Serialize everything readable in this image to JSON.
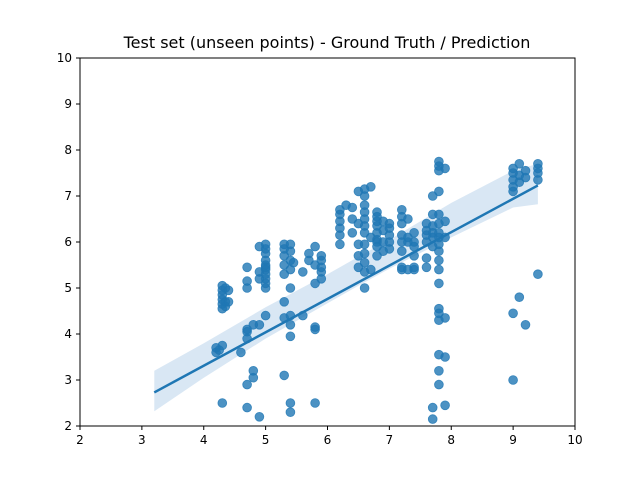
{
  "chart_data": {
    "type": "scatter",
    "title": "Test set (unseen points) - Ground Truth / Prediction",
    "xlabel": "",
    "ylabel": "",
    "xlim": [
      2,
      10
    ],
    "ylim": [
      2,
      10
    ],
    "x_ticks": [
      "2",
      "3",
      "4",
      "5",
      "6",
      "7",
      "8",
      "9",
      "10"
    ],
    "y_ticks": [
      "2",
      "3",
      "4",
      "5",
      "6",
      "7",
      "8",
      "9",
      "10"
    ],
    "grid": false,
    "legend": "none",
    "point_color": "#1f77b4",
    "line_color": "#1f77b4",
    "band_color": "#bfd7ec",
    "points": [
      [
        4.2,
        3.6
      ],
      [
        4.2,
        3.7
      ],
      [
        4.25,
        3.65
      ],
      [
        4.3,
        3.75
      ],
      [
        4.3,
        4.55
      ],
      [
        4.3,
        4.65
      ],
      [
        4.3,
        4.75
      ],
      [
        4.3,
        4.85
      ],
      [
        4.3,
        4.95
      ],
      [
        4.3,
        5.05
      ],
      [
        4.35,
        4.6
      ],
      [
        4.35,
        4.7
      ],
      [
        4.35,
        5.0
      ],
      [
        4.4,
        4.7
      ],
      [
        4.4,
        4.95
      ],
      [
        4.3,
        2.5
      ],
      [
        4.6,
        3.6
      ],
      [
        4.7,
        5.0
      ],
      [
        4.7,
        5.15
      ],
      [
        4.7,
        5.45
      ],
      [
        4.7,
        3.9
      ],
      [
        4.7,
        4.05
      ],
      [
        4.7,
        4.1
      ],
      [
        4.7,
        2.9
      ],
      [
        4.7,
        2.4
      ],
      [
        4.8,
        3.05
      ],
      [
        4.8,
        3.2
      ],
      [
        4.8,
        4.2
      ],
      [
        4.9,
        4.2
      ],
      [
        4.9,
        5.2
      ],
      [
        4.9,
        5.35
      ],
      [
        4.9,
        5.9
      ],
      [
        4.9,
        2.2
      ],
      [
        5.0,
        5.0
      ],
      [
        5.0,
        5.2
      ],
      [
        5.0,
        5.3
      ],
      [
        5.0,
        5.4
      ],
      [
        5.0,
        5.5
      ],
      [
        5.0,
        5.6
      ],
      [
        5.0,
        5.75
      ],
      [
        5.0,
        5.85
      ],
      [
        5.0,
        5.95
      ],
      [
        5.0,
        5.45
      ],
      [
        5.0,
        5.1
      ],
      [
        5.0,
        4.4
      ],
      [
        5.3,
        3.1
      ],
      [
        5.3,
        4.35
      ],
      [
        5.3,
        4.7
      ],
      [
        5.3,
        5.3
      ],
      [
        5.3,
        5.5
      ],
      [
        5.3,
        5.7
      ],
      [
        5.3,
        5.85
      ],
      [
        5.3,
        5.95
      ],
      [
        5.4,
        5.4
      ],
      [
        5.4,
        5.6
      ],
      [
        5.4,
        5.8
      ],
      [
        5.4,
        5.95
      ],
      [
        5.4,
        5.0
      ],
      [
        5.4,
        4.4
      ],
      [
        5.4,
        4.2
      ],
      [
        5.4,
        3.95
      ],
      [
        5.4,
        2.5
      ],
      [
        5.4,
        2.3
      ],
      [
        5.45,
        5.55
      ],
      [
        5.6,
        4.4
      ],
      [
        5.6,
        5.35
      ],
      [
        5.7,
        5.6
      ],
      [
        5.7,
        5.75
      ],
      [
        5.8,
        5.9
      ],
      [
        5.8,
        5.5
      ],
      [
        5.8,
        5.1
      ],
      [
        5.8,
        4.1
      ],
      [
        5.8,
        4.15
      ],
      [
        5.8,
        2.5
      ],
      [
        5.9,
        5.2
      ],
      [
        5.9,
        5.35
      ],
      [
        5.9,
        5.45
      ],
      [
        5.9,
        5.6
      ],
      [
        5.9,
        5.7
      ],
      [
        6.2,
        5.95
      ],
      [
        6.2,
        6.15
      ],
      [
        6.2,
        6.3
      ],
      [
        6.2,
        6.45
      ],
      [
        6.2,
        6.6
      ],
      [
        6.2,
        6.7
      ],
      [
        6.3,
        6.8
      ],
      [
        6.4,
        6.2
      ],
      [
        6.4,
        6.5
      ],
      [
        6.4,
        6.75
      ],
      [
        6.5,
        7.1
      ],
      [
        6.5,
        6.4
      ],
      [
        6.5,
        5.95
      ],
      [
        6.5,
        5.7
      ],
      [
        6.5,
        5.45
      ],
      [
        6.6,
        5.0
      ],
      [
        6.6,
        5.35
      ],
      [
        6.6,
        5.55
      ],
      [
        6.6,
        5.75
      ],
      [
        6.6,
        5.95
      ],
      [
        6.6,
        6.2
      ],
      [
        6.6,
        6.35
      ],
      [
        6.6,
        6.5
      ],
      [
        6.6,
        6.65
      ],
      [
        6.6,
        6.8
      ],
      [
        6.6,
        7.0
      ],
      [
        6.6,
        7.15
      ],
      [
        6.7,
        7.2
      ],
      [
        6.7,
        6.1
      ],
      [
        6.7,
        5.4
      ],
      [
        6.8,
        5.7
      ],
      [
        6.8,
        5.9
      ],
      [
        6.8,
        6.05
      ],
      [
        6.8,
        6.2
      ],
      [
        6.8,
        6.35
      ],
      [
        6.8,
        6.45
      ],
      [
        6.8,
        6.55
      ],
      [
        6.8,
        6.65
      ],
      [
        6.8,
        6.0
      ],
      [
        6.9,
        6.25
      ],
      [
        6.9,
        6.45
      ],
      [
        6.9,
        6.0
      ],
      [
        6.9,
        5.8
      ],
      [
        7.0,
        5.85
      ],
      [
        7.0,
        6.0
      ],
      [
        7.0,
        6.15
      ],
      [
        7.0,
        6.3
      ],
      [
        7.0,
        6.4
      ],
      [
        7.2,
        5.4
      ],
      [
        7.2,
        5.45
      ],
      [
        7.2,
        5.8
      ],
      [
        7.2,
        6.0
      ],
      [
        7.2,
        6.15
      ],
      [
        7.2,
        6.4
      ],
      [
        7.2,
        6.55
      ],
      [
        7.2,
        6.7
      ],
      [
        7.3,
        6.0
      ],
      [
        7.3,
        6.1
      ],
      [
        7.3,
        5.4
      ],
      [
        7.3,
        6.5
      ],
      [
        7.4,
        5.4
      ],
      [
        7.4,
        5.45
      ],
      [
        7.4,
        5.7
      ],
      [
        7.4,
        5.9
      ],
      [
        7.4,
        6.0
      ],
      [
        7.4,
        6.2
      ],
      [
        7.6,
        5.45
      ],
      [
        7.6,
        5.65
      ],
      [
        7.6,
        6.0
      ],
      [
        7.6,
        6.15
      ],
      [
        7.6,
        6.25
      ],
      [
        7.6,
        6.4
      ],
      [
        7.7,
        2.15
      ],
      [
        7.7,
        2.4
      ],
      [
        7.7,
        5.9
      ],
      [
        7.7,
        6.1
      ],
      [
        7.7,
        6.2
      ],
      [
        7.7,
        6.35
      ],
      [
        7.7,
        6.6
      ],
      [
        7.7,
        7.0
      ],
      [
        7.8,
        2.9
      ],
      [
        7.8,
        3.2
      ],
      [
        7.8,
        3.55
      ],
      [
        7.8,
        4.3
      ],
      [
        7.8,
        4.45
      ],
      [
        7.8,
        4.55
      ],
      [
        7.8,
        5.1
      ],
      [
        7.8,
        5.4
      ],
      [
        7.8,
        5.6
      ],
      [
        7.8,
        5.8
      ],
      [
        7.8,
        5.95
      ],
      [
        7.8,
        6.1
      ],
      [
        7.8,
        6.2
      ],
      [
        7.8,
        6.4
      ],
      [
        7.8,
        6.6
      ],
      [
        7.8,
        7.1
      ],
      [
        7.8,
        7.55
      ],
      [
        7.8,
        7.65
      ],
      [
        7.8,
        7.75
      ],
      [
        7.9,
        2.45
      ],
      [
        7.9,
        3.5
      ],
      [
        7.9,
        4.35
      ],
      [
        7.9,
        6.1
      ],
      [
        7.9,
        6.45
      ],
      [
        7.9,
        7.6
      ],
      [
        9.0,
        3.0
      ],
      [
        9.0,
        4.45
      ],
      [
        9.0,
        7.1
      ],
      [
        9.0,
        7.2
      ],
      [
        9.0,
        7.35
      ],
      [
        9.0,
        7.5
      ],
      [
        9.0,
        7.6
      ],
      [
        9.1,
        4.8
      ],
      [
        9.1,
        7.3
      ],
      [
        9.1,
        7.45
      ],
      [
        9.1,
        7.7
      ],
      [
        9.2,
        4.2
      ],
      [
        9.2,
        7.4
      ],
      [
        9.2,
        7.55
      ],
      [
        9.4,
        5.3
      ],
      [
        9.4,
        7.35
      ],
      [
        9.4,
        7.5
      ],
      [
        9.4,
        7.6
      ],
      [
        9.4,
        7.7
      ]
    ],
    "regression_line": {
      "x": [
        3.2,
        9.4
      ],
      "y": [
        2.73,
        7.23
      ]
    },
    "confidence_band": {
      "x": [
        3.2,
        4.0,
        5.0,
        6.0,
        6.5,
        7.0,
        8.0,
        9.0,
        9.4
      ],
      "upper": [
        3.2,
        3.8,
        4.58,
        5.3,
        5.68,
        6.05,
        6.85,
        7.55,
        7.7
      ],
      "lower": [
        2.32,
        3.05,
        3.9,
        4.67,
        5.05,
        5.42,
        6.1,
        6.75,
        6.82
      ]
    }
  }
}
